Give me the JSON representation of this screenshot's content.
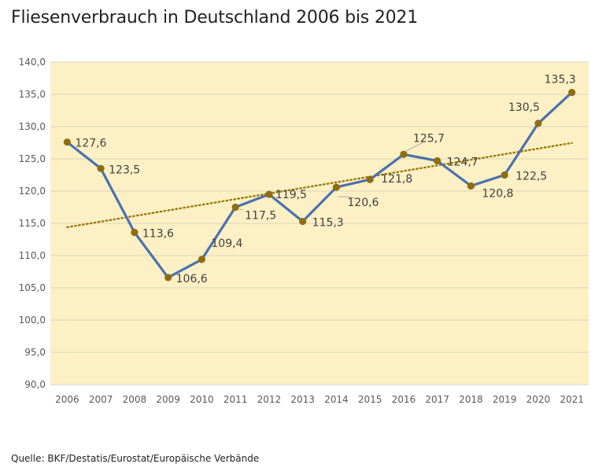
{
  "title": "Fliesenverbrauch in Deutschland 2006 bis 2021",
  "source": "Quelle: BKF/Destatis/Eurostat/Europäische Verbände",
  "colors": {
    "plot_background": "#fdf0c4",
    "gridline": "#d9d3bd",
    "line": "#4a72b0",
    "marker": "#8e6c12",
    "trendline": "#9a7a0e"
  },
  "chart_data": {
    "type": "line",
    "title": "Fliesenverbrauch in Deutschland 2006 bis 2021",
    "xlabel": "",
    "ylabel": "",
    "categories": [
      "2006",
      "2007",
      "2008",
      "2009",
      "2010",
      "2011",
      "2012",
      "2013",
      "2014",
      "2015",
      "2016",
      "2017",
      "2018",
      "2019",
      "2020",
      "2021"
    ],
    "values": [
      127.6,
      123.5,
      113.6,
      106.6,
      109.4,
      117.5,
      119.5,
      115.3,
      120.6,
      121.8,
      125.7,
      124.7,
      120.8,
      122.5,
      130.5,
      135.3
    ],
    "data_labels": [
      "127,6",
      "123,5",
      "113,6",
      "106,6",
      "109,4",
      "117,5",
      "119,5",
      "115,3",
      "120,6",
      "121,8",
      "125,7",
      "124,7",
      "120,8",
      "122,5",
      "130,5",
      "135,3"
    ],
    "ylim": [
      90,
      140
    ],
    "y_ticks": [
      140,
      135,
      130,
      125,
      120,
      115,
      110,
      105,
      100,
      95,
      90
    ],
    "y_tick_labels": [
      "140,0",
      "135,0",
      "130,0",
      "125,0",
      "120,0",
      "115,0",
      "110,0",
      "105,0",
      "100,0",
      "95,0",
      "90,0"
    ],
    "grid": true,
    "legend": "none",
    "trendline": {
      "type": "linear",
      "style": "dotted"
    }
  }
}
